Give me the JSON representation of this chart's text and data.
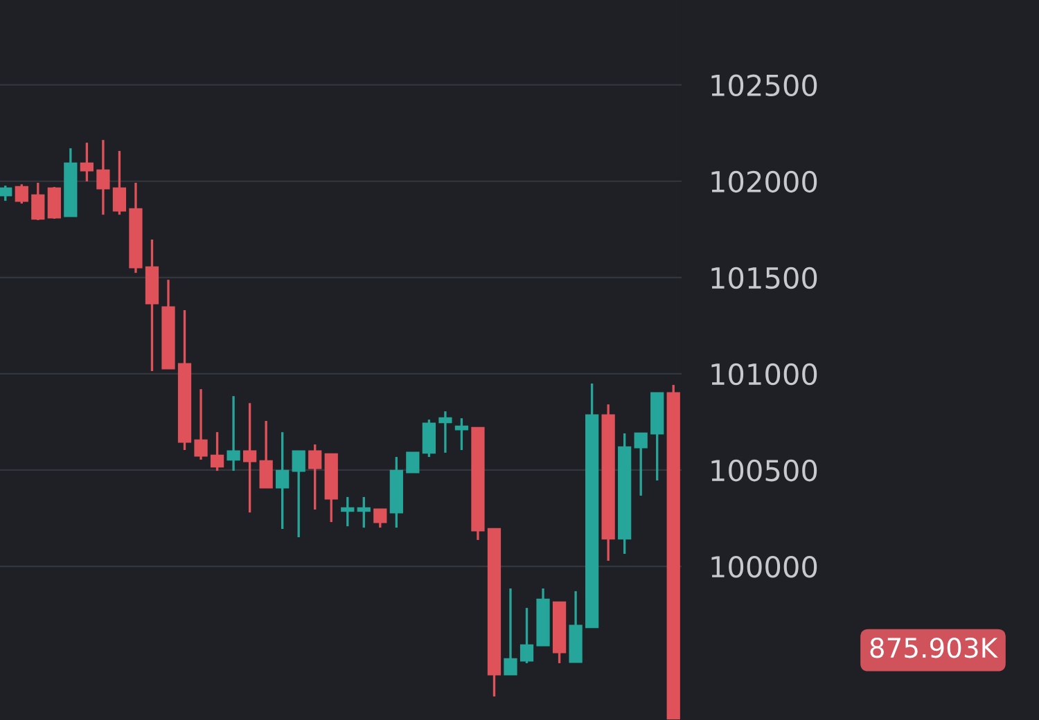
{
  "chart_data": {
    "type": "candlestick",
    "categories": [
      null,
      null,
      null,
      null,
      null,
      null,
      null,
      null,
      null,
      null,
      null,
      null,
      null,
      null,
      null,
      null,
      null,
      null,
      null,
      null,
      null,
      null,
      null,
      null,
      null,
      null,
      null,
      null,
      null,
      null,
      null,
      null,
      null,
      null,
      null,
      null,
      null,
      null,
      null,
      null,
      null,
      null
    ],
    "ohlc": [
      [
        101927,
        101977,
        101898,
        101963
      ],
      [
        101970,
        101984,
        101884,
        101898
      ],
      [
        101927,
        101992,
        101798,
        101805
      ],
      [
        101963,
        101970,
        101805,
        101812
      ],
      [
        101819,
        102171,
        101819,
        102092
      ],
      [
        102092,
        102200,
        101999,
        102056
      ],
      [
        102056,
        102214,
        101826,
        101963
      ],
      [
        101963,
        102157,
        101826,
        101848
      ],
      [
        101855,
        101992,
        101524,
        101553
      ],
      [
        101553,
        101697,
        101014,
        101366
      ],
      [
        101345,
        101488,
        101028,
        101028
      ],
      [
        101050,
        101330,
        100604,
        100647
      ],
      [
        100654,
        100920,
        100554,
        100575
      ],
      [
        100575,
        100697,
        100496,
        100518
      ],
      [
        100554,
        100884,
        100496,
        100597
      ],
      [
        100597,
        100848,
        100280,
        100546
      ],
      [
        100546,
        100755,
        100410,
        100410
      ],
      [
        100410,
        100697,
        100194,
        100496
      ],
      [
        100496,
        100597,
        100151,
        100597
      ],
      [
        100597,
        100633,
        100295,
        100510
      ],
      [
        100582,
        100582,
        100230,
        100352
      ],
      [
        100288,
        100360,
        100208,
        100302
      ],
      [
        100288,
        100360,
        100201,
        100302
      ],
      [
        100295,
        100295,
        100201,
        100230
      ],
      [
        100280,
        100568,
        100201,
        100496
      ],
      [
        100489,
        100590,
        100489,
        100590
      ],
      [
        100590,
        100762,
        100568,
        100741
      ],
      [
        100748,
        100805,
        100590,
        100769
      ],
      [
        100712,
        100769,
        100604,
        100726
      ],
      [
        100719,
        100719,
        100137,
        100187
      ],
      [
        100194,
        100194,
        99324,
        99439
      ],
      [
        99439,
        99885,
        99439,
        99518
      ],
      [
        99511,
        99784,
        99497,
        99590
      ],
      [
        99590,
        99885,
        99590,
        99827
      ],
      [
        99813,
        99813,
        99497,
        99554
      ],
      [
        99504,
        99871,
        99504,
        99691
      ],
      [
        99684,
        100949,
        99684,
        100784
      ],
      [
        100784,
        100841,
        100029,
        100144
      ],
      [
        100144,
        100690,
        100065,
        100618
      ],
      [
        100618,
        100690,
        100367,
        100690
      ],
      [
        100690,
        100899,
        100446,
        100899
      ],
      [
        100899,
        100942,
        99210,
        99210
      ]
    ],
    "colors": [
      "#26a69a",
      "#e0525a",
      "#e0525a",
      "#e0525a",
      "#26a69a",
      "#e0525a",
      "#e0525a",
      "#e0525a",
      "#e0525a",
      "#e0525a",
      "#e0525a",
      "#e0525a",
      "#e0525a",
      "#e0525a",
      "#26a69a",
      "#e0525a",
      "#e0525a",
      "#26a69a",
      "#26a69a",
      "#e0525a",
      "#e0525a",
      "#26a69a",
      "#26a69a",
      "#e0525a",
      "#26a69a",
      "#26a69a",
      "#26a69a",
      "#26a69a",
      "#26a69a",
      "#e0525a",
      "#e0525a",
      "#26a69a",
      "#26a69a",
      "#26a69a",
      "#e0525a",
      "#26a69a",
      "#26a69a",
      "#e0525a",
      "#26a69a",
      "#26a69a",
      "#26a69a",
      "#e0525a"
    ],
    "ylim": [
      99202,
      102941
    ],
    "yticks": [
      100000,
      100500,
      101000,
      101500,
      102000,
      102500
    ],
    "grid": "y",
    "tick_labels": "y",
    "annotations": [
      "875.903K"
    ]
  }
}
